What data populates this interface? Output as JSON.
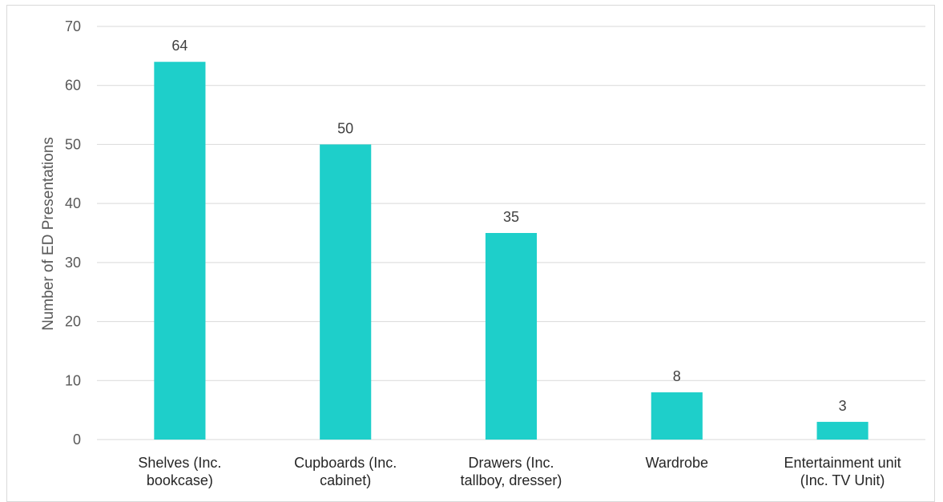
{
  "chart_data": {
    "type": "bar",
    "ylabel": "Number of ED Presentations",
    "xlabel": "",
    "ylim": [
      0,
      70
    ],
    "yticks": [
      0,
      10,
      20,
      30,
      40,
      50,
      60,
      70
    ],
    "grid": true,
    "categories": [
      [
        "Shelves (Inc.",
        "bookcase)"
      ],
      [
        "Cupboards (Inc.",
        "cabinet)"
      ],
      [
        "Drawers (Inc.",
        "tallboy, dresser)"
      ],
      [
        "Wardrobe"
      ],
      [
        "Entertainment unit",
        "(Inc. TV Unit)"
      ]
    ],
    "values": [
      64,
      50,
      35,
      8,
      3
    ],
    "data_labels": [
      "64",
      "50",
      "35",
      "8",
      "3"
    ],
    "bar_color": "#1ecfca",
    "grid_color": "#d9d9d9"
  }
}
